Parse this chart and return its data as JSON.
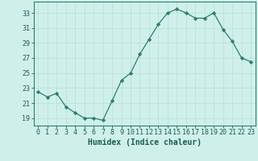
{
  "x": [
    0,
    1,
    2,
    3,
    4,
    5,
    6,
    7,
    8,
    9,
    10,
    11,
    12,
    13,
    14,
    15,
    16,
    17,
    18,
    19,
    20,
    21,
    22,
    23
  ],
  "y": [
    22.5,
    21.8,
    22.3,
    20.5,
    19.7,
    19.0,
    19.0,
    18.7,
    21.3,
    24.0,
    25.0,
    27.5,
    29.5,
    31.5,
    33.0,
    33.5,
    33.0,
    32.3,
    32.3,
    33.0,
    30.8,
    29.2,
    27.0,
    26.5
  ],
  "xlabel": "Humidex (Indice chaleur)",
  "ylim": [
    18.0,
    34.5
  ],
  "xlim": [
    -0.5,
    23.5
  ],
  "yticks": [
    19,
    21,
    23,
    25,
    27,
    29,
    31,
    33
  ],
  "xticks": [
    0,
    1,
    2,
    3,
    4,
    5,
    6,
    7,
    8,
    9,
    10,
    11,
    12,
    13,
    14,
    15,
    16,
    17,
    18,
    19,
    20,
    21,
    22,
    23
  ],
  "line_color": "#2e7d6e",
  "marker_color": "#2e7d6e",
  "bg_color": "#cff0ea",
  "grid_color": "#b8ddd7",
  "axis_color": "#2e7d6e",
  "tick_label_color": "#1a5c52",
  "xlabel_fontsize": 7,
  "tick_fontsize": 6
}
